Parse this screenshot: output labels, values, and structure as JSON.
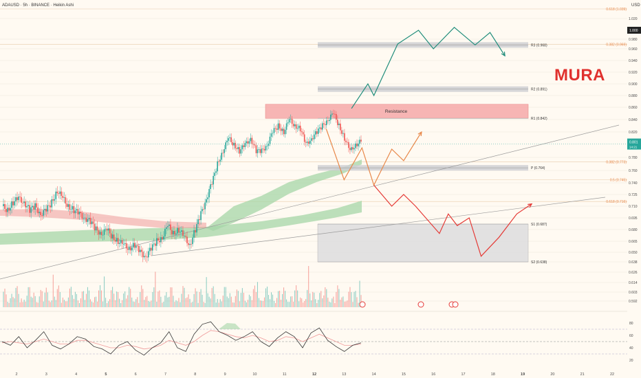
{
  "header": {
    "symbol": "ADAUSD · 5h · BINANCE · Heikin Ashi",
    "currency": "USD"
  },
  "brand": {
    "watermark": "MURA"
  },
  "colors": {
    "bg": "#fffaf2",
    "up": "#26a69a",
    "down": "#ef5350",
    "axis_text": "#4a4a4a",
    "grid": "#ece6da",
    "resistance": "#f6a5a5",
    "support_box": "#d9d9dc",
    "level_box": "#cfcfd3",
    "fib": "#e8884a",
    "ema_red": "#ef9a9a",
    "ema_green": "#a5d6a7",
    "path_green": "#1e8c7a",
    "path_orange": "#e8884a",
    "path_red": "#e53935",
    "brand": "#e0312e"
  },
  "chart_data": {
    "type": "candlestick",
    "y_axis": {
      "range": [
        0.585,
        1.05
      ],
      "ticks": [
        "1.020",
        "0.980",
        "0.960",
        "0.940",
        "0.920",
        "0.900",
        "0.880",
        "0.860",
        "0.840",
        "0.820",
        "0.780",
        "0.760",
        "0.740",
        "0.725",
        "0.710",
        "0.695",
        "0.680",
        "0.665",
        "0.650",
        "0.638",
        "0.626",
        "0.614",
        "0.603",
        "0.592"
      ],
      "current_price_label": "0.801",
      "current_price_sub": "14:21",
      "highlight_label": "1.000"
    },
    "x_axis": {
      "ticks": [
        "2",
        "3",
        "4",
        "5",
        "6",
        "7",
        "8",
        "9",
        "10",
        "11",
        "12",
        "13",
        "14",
        "15",
        "16",
        "17",
        "18",
        "19",
        "20",
        "21",
        "22"
      ],
      "bold_ticks": [
        "5",
        "12",
        "19"
      ]
    },
    "resistance": {
      "label": "Resistance",
      "from": 0.842,
      "to": 0.865
    },
    "pivots": [
      {
        "name": "R3",
        "label": "R3 (0.968)",
        "value": 0.968
      },
      {
        "name": "R2",
        "label": "R2 (0.891)",
        "value": 0.891
      },
      {
        "name": "R1",
        "label": "R1 (0.842)",
        "value": 0.842
      },
      {
        "name": "P",
        "label": "P (0.764)",
        "value": 0.764
      },
      {
        "name": "S1",
        "label": "S1 (0.687)",
        "value": 0.687
      },
      {
        "name": "S2",
        "label": "S2 (0.638)",
        "value": 0.638
      }
    ],
    "fib_levels": [
      {
        "label": "0.618 (1.039)",
        "value": 1.039
      },
      {
        "label": "0.382 (0.969)",
        "value": 0.969
      },
      {
        "label": "0.382 (0.773)",
        "value": 0.773
      },
      {
        "label": "0.5 (0.745)",
        "value": 0.745
      },
      {
        "label": "0.618 (0.716)",
        "value": 0.716
      }
    ],
    "price_path": [
      0.71,
      0.705,
      0.715,
      0.72,
      0.715,
      0.705,
      0.71,
      0.7,
      0.705,
      0.715,
      0.73,
      0.72,
      0.71,
      0.705,
      0.7,
      0.695,
      0.69,
      0.68,
      0.675,
      0.68,
      0.67,
      0.665,
      0.66,
      0.655,
      0.66,
      0.65,
      0.645,
      0.655,
      0.665,
      0.67,
      0.685,
      0.675,
      0.68,
      0.67,
      0.66,
      0.68,
      0.7,
      0.72,
      0.74,
      0.77,
      0.79,
      0.81,
      0.8,
      0.79,
      0.8,
      0.81,
      0.79,
      0.79,
      0.8,
      0.82,
      0.83,
      0.82,
      0.84,
      0.83,
      0.825,
      0.8,
      0.81,
      0.82,
      0.83,
      0.84,
      0.85,
      0.83,
      0.81,
      0.79,
      0.8,
      0.805
    ],
    "scenario_paths": {
      "bullish": [
        [
          13.25,
          0.858
        ],
        [
          13.8,
          0.9
        ],
        [
          14.0,
          0.88
        ],
        [
          14.8,
          0.97
        ],
        [
          15.5,
          1.0
        ],
        [
          16.0,
          0.96
        ],
        [
          16.7,
          1.005
        ],
        [
          17.4,
          0.968
        ],
        [
          17.9,
          0.995
        ],
        [
          18.4,
          0.948
        ]
      ],
      "base": [
        [
          12.4,
          0.825
        ],
        [
          13.0,
          0.745
        ],
        [
          13.6,
          0.795
        ],
        [
          14.0,
          0.737
        ],
        [
          14.6,
          0.793
        ],
        [
          15.0,
          0.775
        ],
        [
          15.6,
          0.82
        ]
      ],
      "bearish": [
        [
          14.0,
          0.737
        ],
        [
          14.6,
          0.71
        ],
        [
          15.0,
          0.725
        ],
        [
          15.4,
          0.71
        ],
        [
          16.2,
          0.675
        ],
        [
          16.5,
          0.7
        ],
        [
          16.8,
          0.685
        ],
        [
          17.2,
          0.695
        ],
        [
          17.6,
          0.645
        ],
        [
          18.2,
          0.67
        ],
        [
          18.8,
          0.7
        ],
        [
          19.3,
          0.713
        ]
      ]
    },
    "oscillator": {
      "range": [
        20,
        85
      ],
      "ticks": [
        "80",
        "60",
        "40",
        "20"
      ],
      "guide_levels": [
        70,
        50,
        30
      ],
      "main": [
        50,
        44,
        58,
        40,
        52,
        66,
        44,
        38,
        46,
        58,
        54,
        42,
        38,
        30,
        44,
        50,
        36,
        28,
        40,
        48,
        66,
        40,
        34,
        62,
        78,
        82,
        66,
        60,
        52,
        58,
        66,
        50,
        42,
        56,
        66,
        58,
        40,
        64,
        72,
        52,
        42,
        34,
        44,
        48
      ],
      "signal": [
        48,
        50,
        48,
        46,
        50,
        54,
        50,
        46,
        46,
        52,
        52,
        48,
        44,
        40,
        40,
        44,
        42,
        38,
        40,
        44,
        52,
        48,
        44,
        50,
        60,
        68,
        66,
        62,
        58,
        56,
        60,
        56,
        50,
        52,
        58,
        56,
        50,
        56,
        62,
        56,
        50,
        44,
        44,
        46
      ]
    }
  }
}
